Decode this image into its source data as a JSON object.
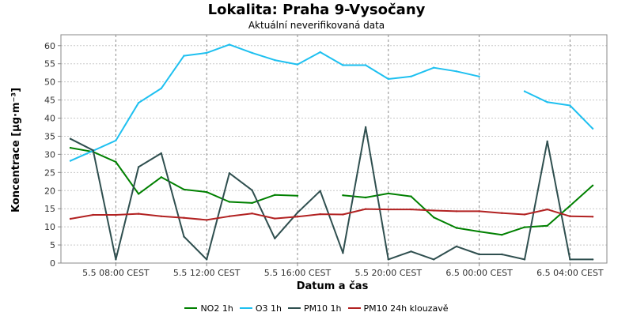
{
  "chart_data": {
    "type": "line",
    "title": "Lokalita: Praha 9-Vysočany",
    "subtitle": "Aktuální neverifikovaná data",
    "xlabel": "Datum a čas",
    "ylabel": "Koncentrace [µg·m⁻³]",
    "ylim": [
      0,
      63
    ],
    "yticks": [
      0,
      5,
      10,
      15,
      20,
      25,
      30,
      35,
      40,
      45,
      50,
      55,
      60
    ],
    "x": [
      "5.5 06:00",
      "5.5 07:00",
      "5.5 08:00",
      "5.5 09:00",
      "5.5 10:00",
      "5.5 11:00",
      "5.5 12:00",
      "5.5 13:00",
      "5.5 14:00",
      "5.5 15:00",
      "5.5 16:00",
      "5.5 17:00",
      "5.5 18:00",
      "5.5 19:00",
      "5.5 20:00",
      "5.5 21:00",
      "5.5 22:00",
      "5.5 23:00",
      "6.5 00:00",
      "6.5 01:00",
      "6.5 02:00",
      "6.5 03:00",
      "6.5 04:00",
      "6.5 05:00"
    ],
    "xticks": [
      {
        "index": 2,
        "label": "5.5 08:00 CEST"
      },
      {
        "index": 6,
        "label": "5.5 12:00 CEST"
      },
      {
        "index": 10,
        "label": "5.5 16:00 CEST"
      },
      {
        "index": 14,
        "label": "5.5 20:00 CEST"
      },
      {
        "index": 18,
        "label": "6.5 00:00 CEST"
      },
      {
        "index": 22,
        "label": "6.5 04:00 CEST"
      }
    ],
    "grid": true,
    "legend_position": "bottom",
    "series": [
      {
        "name": "NO2 1h",
        "color": "#008000",
        "values": [
          31.8,
          30.7,
          27.9,
          19.1,
          23.7,
          20.3,
          19.6,
          16.9,
          16.6,
          18.8,
          18.6,
          null,
          18.7,
          18.1,
          19.2,
          18.4,
          12.6,
          9.7,
          8.7,
          7.8,
          9.9,
          10.3,
          15.8,
          21.4
        ]
      },
      {
        "name": "O3 1h",
        "color": "#1ec0f0",
        "values": [
          28.2,
          31.0,
          33.8,
          44.2,
          48.2,
          57.2,
          58.0,
          60.3,
          58.0,
          56.0,
          54.8,
          58.2,
          54.6,
          54.6,
          50.8,
          51.5,
          53.9,
          52.9,
          51.5,
          null,
          47.4,
          44.4,
          43.5,
          37.1
        ]
      },
      {
        "name": "PM10 1h",
        "color": "#2f4f4f",
        "values": [
          34.3,
          31.1,
          1.0,
          26.5,
          30.3,
          7.3,
          1.0,
          24.8,
          20.1,
          6.8,
          13.9,
          19.9,
          2.8,
          37.5,
          1.0,
          3.2,
          1.0,
          4.6,
          2.4,
          2.4,
          1.0,
          33.6,
          1.0,
          1.0
        ]
      },
      {
        "name": "PM10 24h klouzavě",
        "color": "#b22222",
        "values": [
          12.2,
          13.3,
          13.3,
          13.6,
          12.9,
          12.5,
          11.9,
          12.9,
          13.7,
          12.3,
          12.8,
          13.5,
          13.4,
          14.9,
          14.8,
          14.8,
          14.5,
          14.3,
          14.3,
          13.8,
          13.4,
          14.8,
          12.9,
          12.8
        ]
      }
    ]
  }
}
